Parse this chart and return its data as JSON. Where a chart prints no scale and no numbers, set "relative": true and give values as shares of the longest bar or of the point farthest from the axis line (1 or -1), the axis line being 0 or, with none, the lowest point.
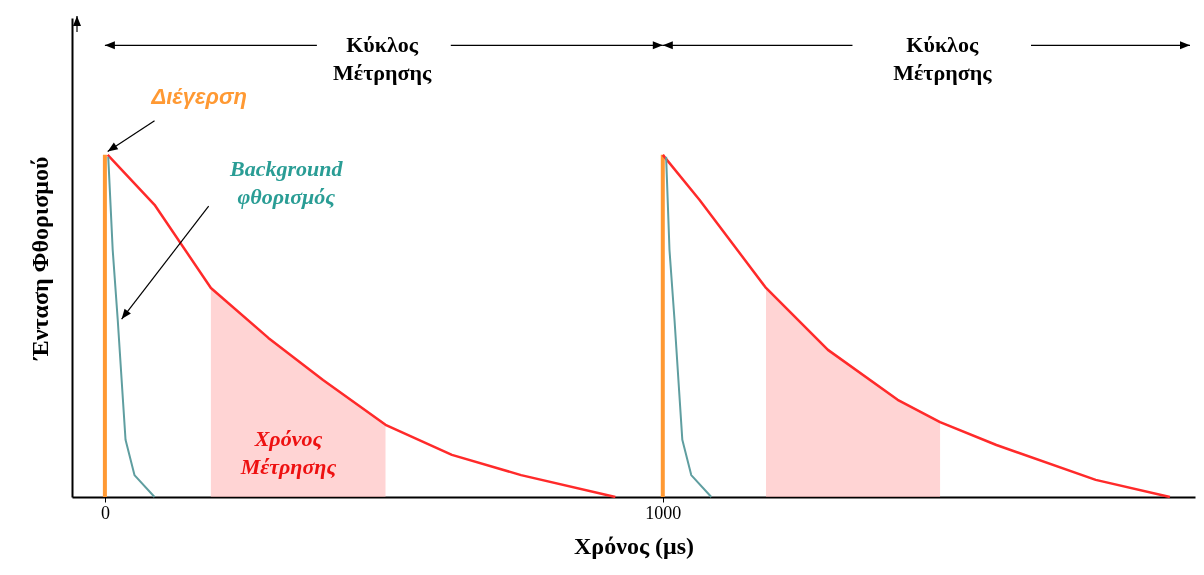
{
  "chart_data": {
    "type": "line",
    "relative": true,
    "xlabel": "Χρόνος (μs)",
    "ylabel": "Ένταση Φθορισμού",
    "xlim": [
      -50,
      1945
    ],
    "xticks": [
      0,
      1000
    ],
    "tick_labels": "x",
    "series": [
      {
        "type": "bar",
        "color": "#ff9933",
        "x": [
          0,
          1000
        ],
        "values": [
          1,
          1
        ]
      },
      {
        "type": "area",
        "color": "#ffb0b0",
        "x": [
          190,
          293,
          391,
          503
        ],
        "values": [
          0.611,
          0.465,
          0.342,
          0.211
        ]
      },
      {
        "type": "area",
        "color": "#ffb0b0",
        "x": [
          1185,
          1296,
          1421,
          1497
        ],
        "values": [
          0.611,
          0.43,
          0.284,
          0.219
        ]
      },
      {
        "color": "#ff2a2a",
        "x": [
          5,
          89,
          190,
          293,
          391,
          503,
          622,
          746,
          915
        ],
        "values": [
          1.0,
          0.854,
          0.611,
          0.465,
          0.342,
          0.211,
          0.123,
          0.064,
          0
        ]
      },
      {
        "color": "#ff2a2a",
        "x": [
          1000,
          1066,
          1185,
          1296,
          1421,
          1497,
          1598,
          1776,
          1909
        ],
        "values": [
          1.0,
          0.868,
          0.611,
          0.43,
          0.284,
          0.219,
          0.152,
          0.05,
          0
        ]
      },
      {
        "color": "#5f9ea0",
        "x": [
          6,
          14,
          23,
          30,
          37,
          53,
          89
        ],
        "values": [
          0.994,
          0.722,
          0.518,
          0.342,
          0.167,
          0.064,
          0
        ]
      },
      {
        "color": "#5f9ea0",
        "x": [
          1006,
          1012,
          1021,
          1028,
          1035,
          1051,
          1087
        ],
        "values": [
          0.994,
          0.722,
          0.518,
          0.342,
          0.167,
          0.064,
          0
        ]
      }
    ],
    "annotations": [
      "Διέγερση",
      "Background φθορισμός",
      "Χρόνος Μέτρησης",
      "Κύκλος Μέτρησης",
      "Κύκλος Μέτρησης"
    ]
  }
}
